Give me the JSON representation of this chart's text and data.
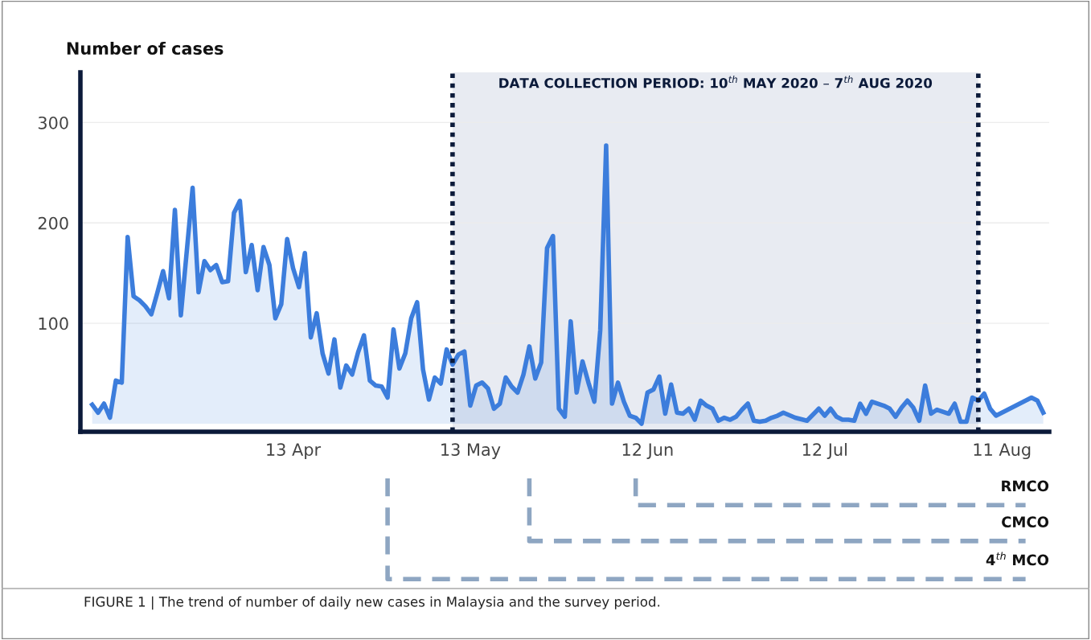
{
  "chart_data": {
    "type": "area",
    "ylabel": "Number of cases",
    "x": [
      "2020-03-10",
      "2020-03-11",
      "2020-03-12",
      "2020-03-13",
      "2020-03-14",
      "2020-03-15",
      "2020-03-16",
      "2020-03-17",
      "2020-03-18",
      "2020-03-19",
      "2020-03-20",
      "2020-03-21",
      "2020-03-22",
      "2020-03-23",
      "2020-03-24",
      "2020-03-25",
      "2020-03-27",
      "2020-03-28",
      "2020-03-29",
      "2020-03-30",
      "2020-03-31",
      "2020-04-01",
      "2020-04-02",
      "2020-04-03",
      "2020-04-04",
      "2020-04-05",
      "2020-04-06",
      "2020-04-07",
      "2020-04-08",
      "2020-04-09",
      "2020-04-10",
      "2020-04-11",
      "2020-04-12",
      "2020-04-13",
      "2020-04-14",
      "2020-04-15",
      "2020-04-16",
      "2020-04-17",
      "2020-04-18",
      "2020-04-19",
      "2020-04-20",
      "2020-04-21",
      "2020-04-22",
      "2020-04-23",
      "2020-04-24",
      "2020-04-25",
      "2020-04-26",
      "2020-04-27",
      "2020-04-28",
      "2020-04-29",
      "2020-04-30",
      "2020-05-01",
      "2020-05-02",
      "2020-05-03",
      "2020-05-04",
      "2020-05-05",
      "2020-05-06",
      "2020-05-07",
      "2020-05-08",
      "2020-05-09",
      "2020-05-10",
      "2020-05-11",
      "2020-05-12",
      "2020-05-13",
      "2020-05-14",
      "2020-05-15",
      "2020-05-16",
      "2020-05-17",
      "2020-05-18",
      "2020-05-19",
      "2020-05-20",
      "2020-05-21",
      "2020-05-22",
      "2020-05-23",
      "2020-05-24",
      "2020-05-25",
      "2020-05-26",
      "2020-05-27",
      "2020-05-28",
      "2020-05-29",
      "2020-05-30",
      "2020-05-31",
      "2020-06-01",
      "2020-06-02",
      "2020-06-03",
      "2020-06-04",
      "2020-06-05",
      "2020-06-06",
      "2020-06-07",
      "2020-06-08",
      "2020-06-09",
      "2020-06-10",
      "2020-06-11",
      "2020-06-12",
      "2020-06-13",
      "2020-06-14",
      "2020-06-15",
      "2020-06-16",
      "2020-06-17",
      "2020-06-18",
      "2020-06-19",
      "2020-06-20",
      "2020-06-21",
      "2020-06-22",
      "2020-06-23",
      "2020-06-24",
      "2020-06-25",
      "2020-06-26",
      "2020-06-27",
      "2020-06-28",
      "2020-06-29",
      "2020-06-30",
      "2020-07-01",
      "2020-07-02",
      "2020-07-03",
      "2020-07-04",
      "2020-07-05",
      "2020-07-07",
      "2020-07-09",
      "2020-07-11",
      "2020-07-12",
      "2020-07-13",
      "2020-07-14",
      "2020-07-15",
      "2020-07-16",
      "2020-07-17",
      "2020-07-18",
      "2020-07-19",
      "2020-07-20",
      "2020-07-22",
      "2020-07-23",
      "2020-07-24",
      "2020-07-25",
      "2020-07-26",
      "2020-07-27",
      "2020-07-28",
      "2020-07-29",
      "2020-07-30",
      "2020-07-31",
      "2020-08-01",
      "2020-08-02",
      "2020-08-03",
      "2020-08-04",
      "2020-08-05",
      "2020-08-06",
      "2020-08-07",
      "2020-08-08",
      "2020-08-09",
      "2020-08-10",
      "2020-08-11",
      "2020-08-14",
      "2020-08-16",
      "2020-08-17",
      "2020-08-18"
    ],
    "series": [
      {
        "color": "#3c7ddc",
        "values": [
          19,
          11,
          20,
          6,
          43,
          41,
          186,
          127,
          123,
          117,
          109,
          130,
          152,
          125,
          213,
          108,
          235,
          131,
          162,
          153,
          158,
          141,
          142,
          210,
          222,
          151,
          178,
          133,
          176,
          158,
          105,
          119,
          184,
          155,
          136,
          170,
          86,
          110,
          70,
          50,
          84,
          36,
          58,
          49,
          71,
          88,
          43,
          38,
          37,
          26,
          94,
          55,
          70,
          105,
          121,
          54,
          24,
          46,
          40,
          74,
          59,
          69,
          72,
          18,
          38,
          41,
          35,
          15,
          20,
          46,
          37,
          31,
          49,
          77,
          45,
          61,
          175,
          187,
          15,
          7,
          102,
          31,
          62,
          41,
          22,
          93,
          277,
          20,
          41,
          22,
          8,
          6,
          0,
          31,
          34,
          47,
          10,
          39,
          11,
          10,
          15,
          4,
          23,
          18,
          15,
          3,
          6,
          4,
          7,
          14,
          20,
          3,
          2,
          3,
          6,
          8,
          11,
          6,
          3,
          15,
          8,
          15,
          7,
          4,
          4,
          3,
          20,
          10,
          22,
          18,
          15,
          7,
          16,
          23,
          16,
          3,
          38,
          10,
          14,
          12,
          10,
          20,
          2,
          2,
          26,
          23,
          30,
          15,
          8,
          11,
          20,
          26,
          23,
          11
        ]
      }
    ],
    "xlim": [
      "2020-03-08",
      "2020-08-19"
    ],
    "xticks": [
      {
        "value": "2020-04-13",
        "label": "13 Apr"
      },
      {
        "value": "2020-05-13",
        "label": "13 May"
      },
      {
        "value": "2020-06-12",
        "label": "12 Jun"
      },
      {
        "value": "2020-07-12",
        "label": "12 Jul"
      },
      {
        "value": "2020-08-11",
        "label": "11 Aug"
      }
    ],
    "ylim": [
      -8,
      350
    ],
    "yticks": [
      100,
      200,
      300
    ],
    "grid": "y",
    "bands": [
      {
        "axis": "x",
        "from": "2020-05-10",
        "to": "2020-08-07",
        "label": "DATA COLLECTION PERIOD: 10$^{th}$ MAY 2020 – 7$^{th}$ AUG 2020",
        "color": "#e8ebf2"
      }
    ],
    "ref_lines": [
      {
        "axis": "x",
        "value": "2020-05-10",
        "color": "#0b1a3a",
        "line_style": "dotted"
      },
      {
        "axis": "x",
        "value": "2020-08-07",
        "color": "#0b1a3a",
        "line_style": "dotted"
      }
    ],
    "annotations": [
      {
        "text": "RMCO",
        "x": "2020-06-10"
      },
      {
        "text": "CMCO",
        "x": "2020-05-23"
      },
      {
        "text": "4$^{th}$ MCO",
        "x": "2020-04-29"
      },
      "FIGURE 1 | The trend of number of daily new cases in Malaysia and the survey period."
    ]
  }
}
